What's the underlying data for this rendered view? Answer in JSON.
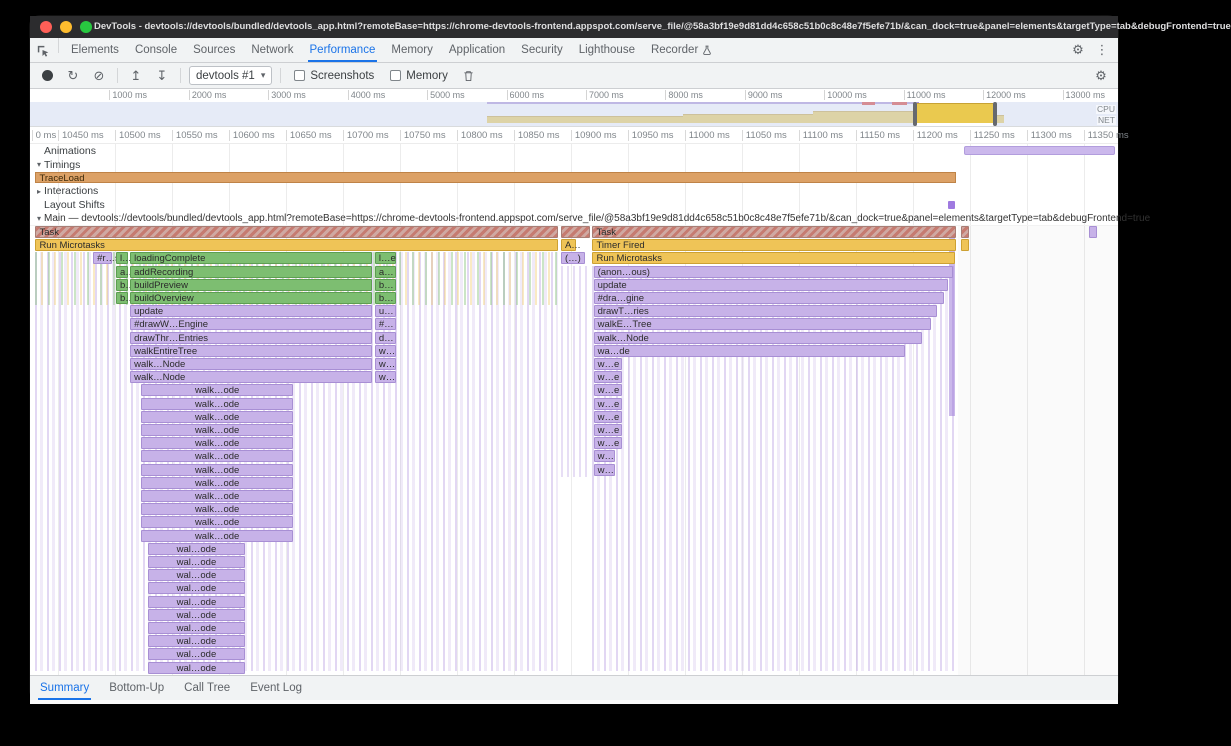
{
  "window": {
    "title": "DevTools - devtools://devtools/bundled/devtools_app.html?remoteBase=https://chrome-devtools-frontend.appspot.com/serve_file/@58a3bf19e9d81dd4c658c51b0c8c48e7f5efe71b/&can_dock=true&panel=elements&targetType=tab&debugFrontend=true"
  },
  "devtools_tabs": {
    "items": [
      "Elements",
      "Console",
      "Sources",
      "Network",
      "Performance",
      "Memory",
      "Application",
      "Security",
      "Lighthouse",
      "Recorder"
    ],
    "selected": "Performance"
  },
  "perf_toolbar": {
    "history_select": "devtools #1",
    "screenshots_label": "Screenshots",
    "memory_label": "Memory"
  },
  "overview": {
    "ruler_labels": [
      "1000 ms",
      "2000 ms",
      "3000 ms",
      "4000 ms",
      "5000 ms",
      "6000 ms",
      "7000 ms",
      "8000 ms",
      "9000 ms",
      "10000 ms",
      "11000 ms",
      "12000 ms",
      "13000 ms"
    ],
    "cpu_label": "CPU",
    "net_label": "NET"
  },
  "detail_ruler": {
    "labels": [
      "0 ms",
      "10450 ms",
      "10500 ms",
      "10550 ms",
      "10600 ms",
      "10650 ms",
      "10700 ms",
      "10750 ms",
      "10800 ms",
      "10850 ms",
      "10900 ms",
      "10950 ms",
      "11000 ms",
      "11050 ms",
      "11100 ms",
      "11150 ms",
      "11200 ms",
      "11250 ms",
      "11300 ms",
      "11350 ms"
    ]
  },
  "tracks": {
    "animations_label": "Animations",
    "timings_label": "Timings",
    "trace_load_label": "TraceLoad",
    "interactions_label": "Interactions",
    "layout_shifts_label": "Layout Shifts",
    "main_label": "Main — devtools://devtools/bundled/devtools_app.html?remoteBase=https://chrome-devtools-frontend.appspot.com/serve_file/@58a3bf19e9d81dd4c658c51b0c8c48e7f5efe71b/&can_dock=true&panel=elements&targetType=tab&debugFrontend=true"
  },
  "bottom_tabs": {
    "items": [
      "Summary",
      "Bottom-Up",
      "Call Tree",
      "Event Log"
    ],
    "selected": "Summary"
  },
  "colors": {
    "accent_blue": "#1a73e8",
    "task": "#cfa9a2",
    "task_stripe": "#be5548",
    "scripting_yellow": "#efc457",
    "function_green": "#7dbe71",
    "lavender": "#c7b2e8",
    "timing_orange": "#dca166",
    "layout_shift_violet": "#9f7ae0"
  },
  "flame": {
    "row_height": 13.2,
    "bars": [
      {
        "r": 0,
        "x": 0.5,
        "w": 48,
        "c": "task",
        "t": "Task",
        "s": 1
      },
      {
        "r": 1,
        "x": 0.5,
        "w": 48,
        "c": "yellow",
        "t": "Run Microtasks"
      },
      {
        "r": 2,
        "x": 5.8,
        "w": 1.7,
        "c": "lav",
        "t": "#r…s"
      },
      {
        "r": 2,
        "x": 7.9,
        "w": 1.1,
        "c": "green",
        "t": "l…e"
      },
      {
        "r": 2,
        "x": 9.2,
        "w": 22.2,
        "c": "green",
        "t": "loadingComplete"
      },
      {
        "r": 2,
        "x": 31.7,
        "w": 1.9,
        "c": "green",
        "t": "l…e"
      },
      {
        "r": 3,
        "x": 7.9,
        "w": 1.1,
        "c": "green",
        "t": "a…"
      },
      {
        "r": 3,
        "x": 9.2,
        "w": 22.2,
        "c": "green",
        "t": "addRecording"
      },
      {
        "r": 3,
        "x": 31.7,
        "w": 1.9,
        "c": "green",
        "t": "a…"
      },
      {
        "r": 4,
        "x": 7.9,
        "w": 1.1,
        "c": "green",
        "t": "b…"
      },
      {
        "r": 4,
        "x": 9.2,
        "w": 22.2,
        "c": "green",
        "t": "buildPreview"
      },
      {
        "r": 4,
        "x": 31.7,
        "w": 1.9,
        "c": "green",
        "t": "b…"
      },
      {
        "r": 5,
        "x": 7.9,
        "w": 1.1,
        "c": "green",
        "t": "b…"
      },
      {
        "r": 5,
        "x": 9.2,
        "w": 22.2,
        "c": "green",
        "t": "buildOverview"
      },
      {
        "r": 5,
        "x": 31.7,
        "w": 1.9,
        "c": "green",
        "t": "b…"
      },
      {
        "r": 6,
        "x": 9.2,
        "w": 22.2,
        "c": "lav",
        "t": "update"
      },
      {
        "r": 6,
        "x": 31.7,
        "w": 1.9,
        "c": "lav",
        "t": "u…"
      },
      {
        "r": 7,
        "x": 9.2,
        "w": 22.2,
        "c": "lav",
        "t": "#drawW…Engine"
      },
      {
        "r": 7,
        "x": 31.7,
        "w": 1.9,
        "c": "lav",
        "t": "#…"
      },
      {
        "r": 8,
        "x": 9.2,
        "w": 22.2,
        "c": "lav",
        "t": "drawThr…Entries"
      },
      {
        "r": 8,
        "x": 31.7,
        "w": 1.9,
        "c": "lav",
        "t": "d…"
      },
      {
        "r": 9,
        "x": 9.2,
        "w": 22.2,
        "c": "lav",
        "t": "walkEntireTree"
      },
      {
        "r": 9,
        "x": 31.7,
        "w": 1.9,
        "c": "lav",
        "t": "w…"
      },
      {
        "r": 10,
        "x": 9.2,
        "w": 22.2,
        "c": "lav",
        "t": "walk…Node"
      },
      {
        "r": 10,
        "x": 31.7,
        "w": 1.9,
        "c": "lav",
        "t": "w…"
      },
      {
        "r": 11,
        "x": 9.2,
        "w": 22.2,
        "c": "lav",
        "t": "walk…Node"
      },
      {
        "r": 11,
        "x": 31.7,
        "w": 1.9,
        "c": "lav",
        "t": "w…"
      },
      {
        "r": [
          12,
          23
        ],
        "x": 10.2,
        "w": 14,
        "c": "lav",
        "t": "walk…ode",
        "a": "c"
      },
      {
        "r": [
          24,
          33
        ],
        "x": 10.8,
        "w": 9,
        "c": "lav",
        "t": "wal…ode",
        "a": "c"
      },
      {
        "r": 0,
        "x": 48.8,
        "w": 2.7,
        "c": "task",
        "s": 1
      },
      {
        "r": 0,
        "x": 51.7,
        "w": 33.4,
        "c": "task",
        "t": "Task",
        "s": 1
      },
      {
        "r": 1,
        "x": 48.8,
        "w": 1.4,
        "c": "yellow",
        "t": "A…"
      },
      {
        "r": 1,
        "x": 51.7,
        "w": 33.4,
        "c": "yellow",
        "t": "Timer Fired"
      },
      {
        "r": 2,
        "x": 48.8,
        "w": 2.2,
        "c": "lav",
        "t": "(…)"
      },
      {
        "r": 2,
        "x": 51.7,
        "w": 33.3,
        "c": "yellow",
        "t": "Run Microtasks"
      },
      {
        "r": 3,
        "x": 51.8,
        "w": 33,
        "c": "lav",
        "t": "(anon…ous)"
      },
      {
        "r": 4,
        "x": 51.8,
        "w": 32.6,
        "c": "lav",
        "t": "update"
      },
      {
        "r": 5,
        "x": 51.8,
        "w": 32.2,
        "c": "lav",
        "t": "#dra…gine"
      },
      {
        "r": 6,
        "x": 51.8,
        "w": 31.6,
        "c": "lav",
        "t": "drawT…ries"
      },
      {
        "r": 7,
        "x": 51.8,
        "w": 31,
        "c": "lav",
        "t": "walkE…Tree"
      },
      {
        "r": 8,
        "x": 51.8,
        "w": 30.2,
        "c": "lav",
        "t": "walk…Node"
      },
      {
        "r": 9,
        "x": 51.8,
        "w": 28.6,
        "c": "lav",
        "t": "wa…de"
      },
      {
        "r": [
          10,
          16
        ],
        "x": 51.8,
        "w": 2.6,
        "c": "lav",
        "t": "w…e"
      },
      {
        "r": [
          17,
          18
        ],
        "x": 51.8,
        "w": 2,
        "c": "lav",
        "t": "w…"
      },
      {
        "r": 0,
        "x": 85.6,
        "w": 0.7,
        "c": "task",
        "s": 1
      },
      {
        "r": 1,
        "x": 85.6,
        "w": 0.5,
        "c": "yellow"
      },
      {
        "r": 0,
        "x": 97.3,
        "w": 0.4,
        "c": "lav"
      }
    ]
  }
}
